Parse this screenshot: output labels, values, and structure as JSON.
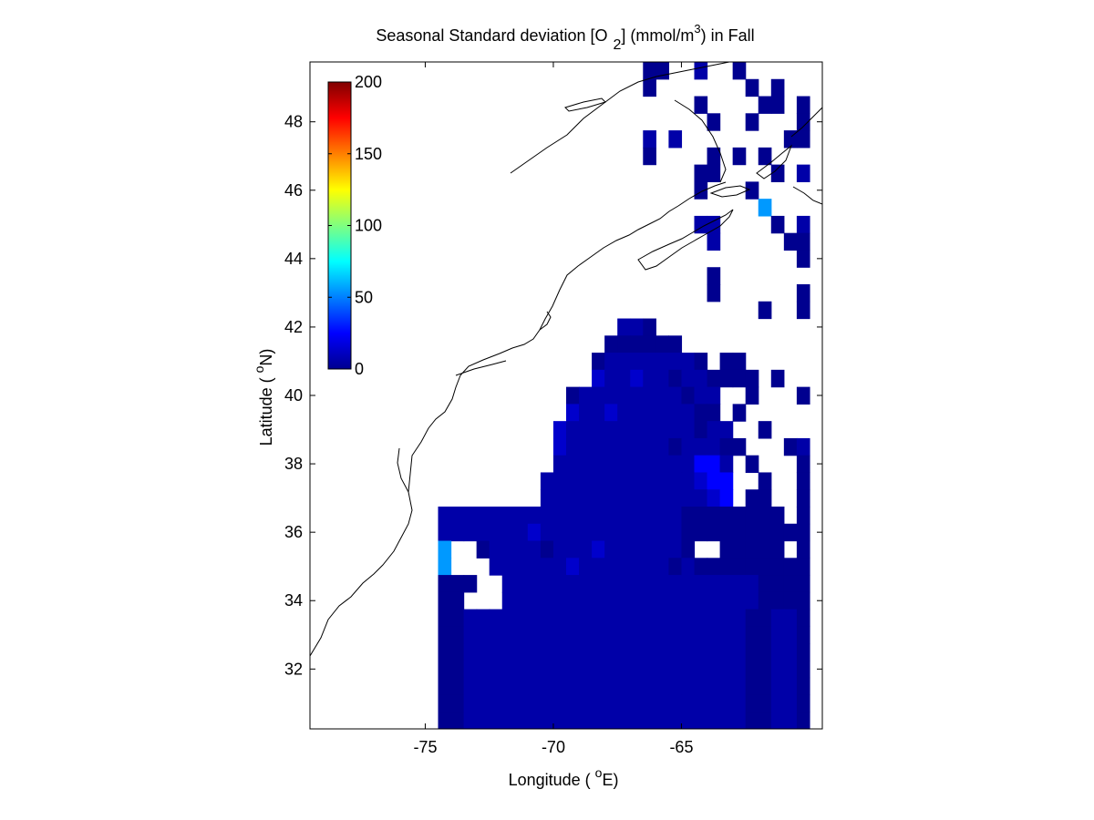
{
  "title": {
    "prefix": "Seasonal Standard deviation [O",
    "sub": "2",
    "mid": "] (mmol/m",
    "sup": "3",
    "suffix": ") in  Fall"
  },
  "xaxis": {
    "label_prefix": "Longitude ( ",
    "label_degree": "o",
    "label_suffix": "E)",
    "ticks": [
      "-75",
      "-70",
      "-65"
    ]
  },
  "yaxis": {
    "label_prefix": "Latitude ( ",
    "label_degree": "o",
    "label_suffix": "N)",
    "ticks": [
      "32",
      "34",
      "36",
      "38",
      "40",
      "42",
      "44",
      "46",
      "48"
    ]
  },
  "colorbar": {
    "ticks": [
      "0",
      "50",
      "100",
      "150",
      "200"
    ],
    "range": [
      0,
      200
    ],
    "colormap": "jet"
  },
  "chart_data": {
    "type": "heatmap",
    "description": "Gridded seasonal standard deviation of dissolved O2 concentration, Fall, northwest Atlantic",
    "x_range": [
      -79.5,
      -59.5
    ],
    "y_range": [
      30.25,
      49.75
    ],
    "cell_size_deg": 0.5,
    "color_scale": "jet",
    "color_range": [
      0,
      200
    ],
    "background": "#ffffff",
    "coastline_color": "#000000",
    "rows_note": "rows ordered north to south starting at 49.75N; each char is a 0.5x0.5 deg cell starting at 79.5W; '.'=no data, 'a'=~3, 'b'=~8, 'c'=~15, 'd'=~25, 'e'=~40, 'f'=~55, 'g'=~65, 'h'=~160",
    "codes": {
      "a": 3,
      "b": 8,
      "c": 15,
      "d": 25,
      "e": 40,
      "f": 55,
      "g": 65,
      "h": 160
    },
    "rows": [
      "..........................aa..b..a.....",
      "..........................a.......a.a..",
      "..............................a....aa.a",
      "...............................a..a...a",
      "..........................b.b........aa",
      "..........................a....a.a.a...",
      "..............................aa....a.b",
      "..............................a...a....",
      "...................................f...",
      "..............................bb....a.b",
      "...............................b.....aa",
      "......................................a",
      "...............................a.......",
      "...............................a......a",
      "...................................a..a",
      "........................bba............",
      ".......................aaaaaa..........",
      "......................abbbbbbba.aa.....",
      "......................cbbcbbabbaaaa.a..",
      "....................abbbbbbbbabb..a...a",
      "....................cbbcbbbbbbaa.a.....",
      "...................cbbbbbbbbbbabb..a...",
      "...................cbbbbbbbbabbbaa...ab",
      "...................bbbbbbbbbbbddb.a...a",
      "..................bbbbbbbbbbbbcdd..a..a",
      "..................bbbbbbbbbbbbbcd.aa..a",
      "..........bbbbbbbbbbbbbbbbbbbaaaaaaaa.a",
      "..........bbbbbbbcbbbbbbbbbbbaaaaaaaaaa",
      "..........f..abbbbabbbcbbbbbba..aaaaa.a",
      "..........f...bbbbbbcbbbbbbbabaaaaaaaaa",
      "..........aaa..bbbbbbbbbbbbbbbbbbbbaaaa",
      "..........aa...bbbbbbbbbbbbbbbbbbbbaaaa",
      "..........aabbbbbbbbbbbbbbbbbbbbbbaabba",
      "..........aabbbbbbbbbbbbbbbbbbbbbbaabba",
      "..........aabbbbbbbbbbbbbbbbbbbbbbaabba",
      "..........aabbbbbbbbbbbbbbbbbbbbbbaabba",
      "..........aabbbbbbbbbbbbbbbbbbbbbbaabba",
      "..........aabbbbbbbbbbbbbbbbbbbbbbaabba",
      "..........aabbbbbbbbbbbbbbbbbbbbbbaabba"
    ]
  }
}
